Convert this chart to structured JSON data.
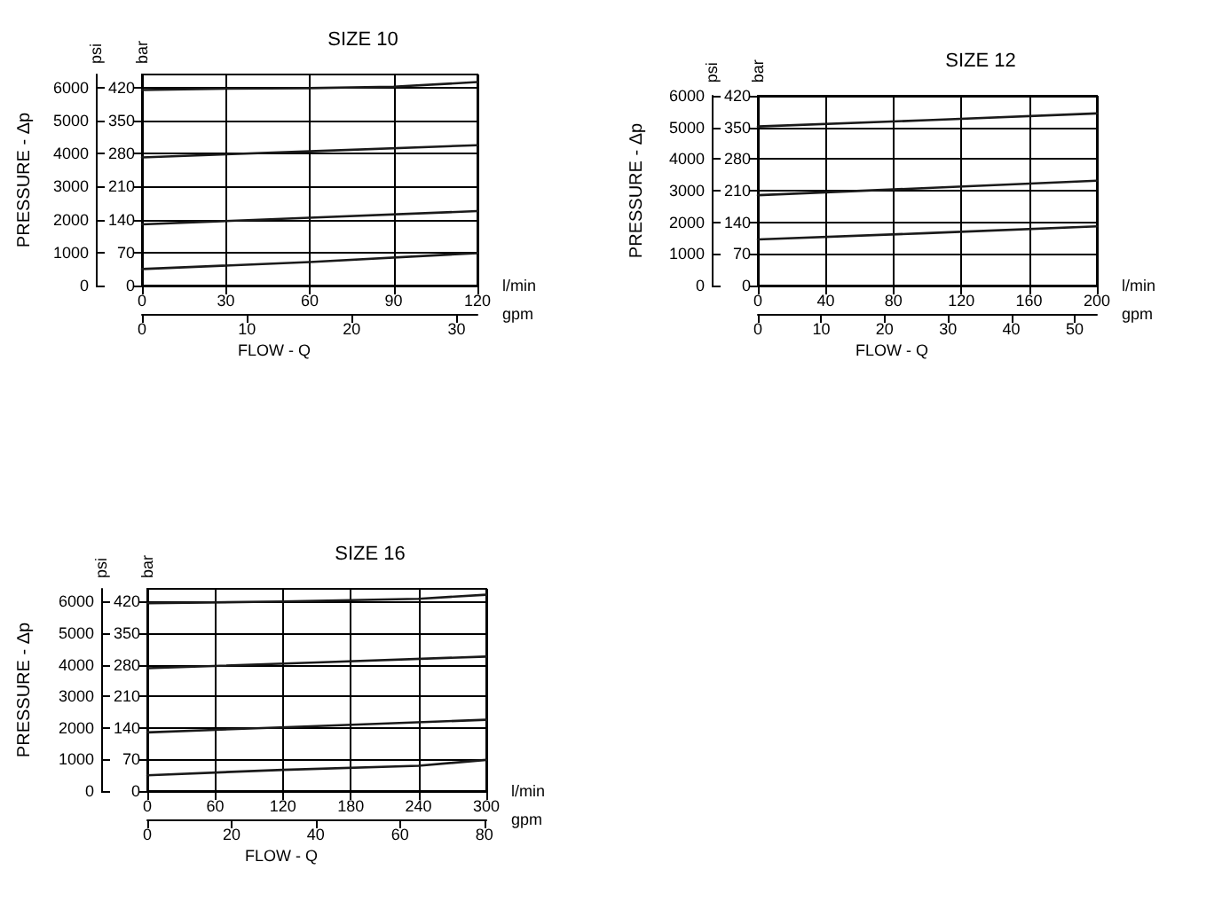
{
  "chart_data": [
    {
      "type": "line",
      "title": "SIZE 10",
      "xlabel": "FLOW - Q",
      "ylabel": "PRESSURE - Δp",
      "annotations": [
        "psi",
        "bar",
        "l/min",
        "gpm"
      ],
      "xlim": [
        0,
        120
      ],
      "xticks": [
        0,
        30,
        60,
        90,
        120
      ],
      "x2lim": [
        0,
        32
      ],
      "x2ticks": [
        0,
        10,
        20,
        30
      ],
      "y2lim": [
        0,
        448
      ],
      "y2ticks": [
        0,
        70,
        140,
        210,
        280,
        350,
        420
      ],
      "ylim": [
        0,
        6400
      ],
      "yticks": [
        0,
        1000,
        2000,
        3000,
        4000,
        5000,
        6000
      ],
      "grid": true,
      "marker": "none",
      "line_style": "solid",
      "series": [
        {
          "color": "#1a1a1a",
          "axis": "y2",
          "x": [
            0,
            30,
            60,
            90,
            120
          ],
          "values": [
            415,
            418,
            419,
            422,
            432
          ]
        },
        {
          "color": "#1a1a1a",
          "axis": "y2",
          "x": [
            0,
            60,
            120
          ],
          "values": [
            272,
            285,
            298
          ]
        },
        {
          "color": "#1a1a1a",
          "axis": "y2",
          "x": [
            0,
            60,
            120
          ],
          "values": [
            130,
            144,
            158
          ]
        },
        {
          "color": "#1a1a1a",
          "axis": "y2",
          "x": [
            0,
            60,
            120
          ],
          "values": [
            35,
            50,
            69
          ]
        }
      ]
    },
    {
      "type": "line",
      "title": "SIZE 12",
      "xlabel": "FLOW - Q",
      "ylabel": "PRESSURE - Δp",
      "annotations": [
        "psi",
        "bar",
        "l/min",
        "gpm"
      ],
      "xlim": [
        0,
        200
      ],
      "xticks": [
        0,
        40,
        80,
        120,
        160,
        200
      ],
      "x2lim": [
        0,
        53.5
      ],
      "x2ticks": [
        0,
        10,
        20,
        30,
        40,
        50
      ],
      "y2lim": [
        0,
        420
      ],
      "y2ticks": [
        0,
        70,
        140,
        210,
        280,
        350,
        420
      ],
      "ylim": [
        0,
        6000
      ],
      "yticks": [
        0,
        1000,
        2000,
        3000,
        4000,
        5000,
        6000
      ],
      "grid": true,
      "marker": "none",
      "line_style": "solid",
      "series": [
        {
          "color": "#1a1a1a",
          "axis": "y2",
          "x": [
            0,
            100,
            200
          ],
          "values": [
            352,
            366,
            381
          ]
        },
        {
          "color": "#1a1a1a",
          "axis": "y2",
          "x": [
            0,
            100,
            200
          ],
          "values": [
            200,
            216,
            232
          ]
        },
        {
          "color": "#1a1a1a",
          "axis": "y2",
          "x": [
            0,
            100,
            200
          ],
          "values": [
            102,
            116,
            131
          ]
        }
      ]
    },
    {
      "type": "line",
      "title": "SIZE 16",
      "xlabel": "FLOW - Q",
      "ylabel": "PRESSURE - Δp",
      "annotations": [
        "psi",
        "bar",
        "l/min",
        "gpm"
      ],
      "xlim": [
        0,
        300
      ],
      "xticks": [
        0,
        60,
        120,
        180,
        240,
        300
      ],
      "x2lim": [
        0,
        80.5
      ],
      "x2ticks": [
        0,
        20,
        40,
        60,
        80
      ],
      "y2lim": [
        0,
        448
      ],
      "y2ticks": [
        0,
        70,
        140,
        210,
        280,
        350,
        420
      ],
      "ylim": [
        0,
        6400
      ],
      "yticks": [
        0,
        1000,
        2000,
        3000,
        4000,
        5000,
        6000
      ],
      "grid": true,
      "marker": "none",
      "line_style": "solid",
      "series": [
        {
          "color": "#1a1a1a",
          "axis": "y2",
          "x": [
            0,
            120,
            240,
            300
          ],
          "values": [
            416,
            420,
            426,
            435
          ]
        },
        {
          "color": "#1a1a1a",
          "axis": "y2",
          "x": [
            0,
            150,
            300
          ],
          "values": [
            272,
            285,
            298
          ]
        },
        {
          "color": "#1a1a1a",
          "axis": "y2",
          "x": [
            0,
            150,
            300
          ],
          "values": [
            130,
            144,
            158
          ]
        },
        {
          "color": "#1a1a1a",
          "axis": "y2",
          "x": [
            0,
            120,
            240,
            300
          ],
          "values": [
            35,
            47,
            56,
            69
          ]
        }
      ]
    }
  ]
}
